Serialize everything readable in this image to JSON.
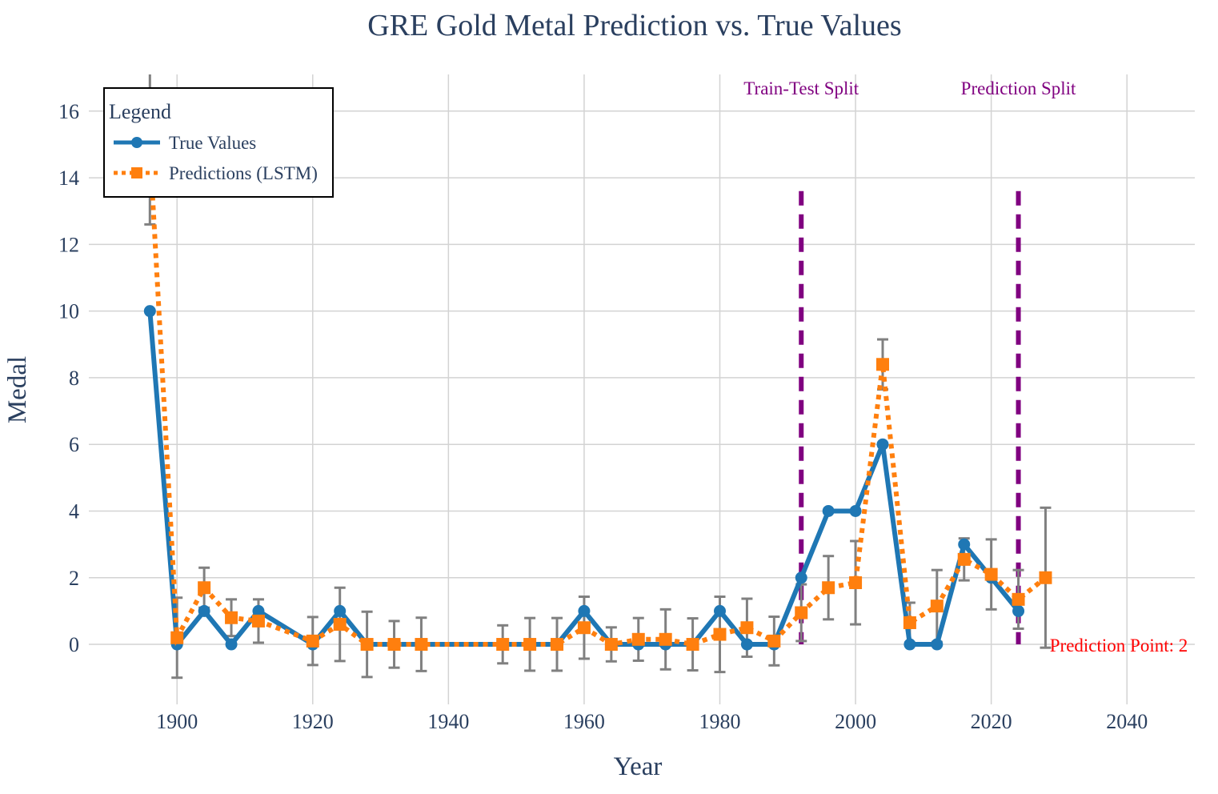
{
  "chart_data": {
    "type": "line",
    "title": "GRE Gold Metal Prediction vs. True Values",
    "xlabel": "Year",
    "ylabel": "Medal",
    "xlim": [
      1887,
      2050
    ],
    "ylim": [
      -1.8,
      17.1
    ],
    "x_ticks": [
      1900,
      1920,
      1940,
      1960,
      1980,
      2000,
      2020,
      2040
    ],
    "y_ticks": [
      0,
      2,
      4,
      6,
      8,
      10,
      12,
      14,
      16
    ],
    "grid": true,
    "legend": {
      "title": "Legend",
      "placement": "top-left",
      "entries": [
        "True Values",
        "Predictions (LSTM)"
      ]
    },
    "series": [
      {
        "name": "True Values",
        "color": "#1f77b4",
        "line": "solid",
        "marker": "circle",
        "x": [
          1896,
          1900,
          1904,
          1908,
          1912,
          1920,
          1924,
          1928,
          1932,
          1936,
          1948,
          1952,
          1956,
          1960,
          1964,
          1968,
          1972,
          1976,
          1980,
          1984,
          1988,
          1992,
          1996,
          2000,
          2004,
          2008,
          2012,
          2016,
          2020,
          2024
        ],
        "y": [
          10,
          0,
          1,
          0,
          1,
          0,
          1,
          0,
          0,
          0,
          0,
          0,
          0,
          1,
          0,
          0,
          0,
          0,
          1,
          0,
          0,
          2,
          4,
          4,
          6,
          0,
          0,
          3,
          2,
          1
        ]
      },
      {
        "name": "Predictions (LSTM)",
        "color": "#ff7f0e",
        "line": "dotted",
        "marker": "square",
        "x": [
          1896,
          1900,
          1904,
          1908,
          1912,
          1920,
          1924,
          1928,
          1932,
          1936,
          1948,
          1952,
          1956,
          1960,
          1964,
          1968,
          1972,
          1976,
          1980,
          1984,
          1988,
          1992,
          1996,
          2000,
          2004,
          2008,
          2012,
          2016,
          2020,
          2024,
          2028
        ],
        "y": [
          14.9,
          0.2,
          1.7,
          0.8,
          0.7,
          0.1,
          0.6,
          0.0,
          0.0,
          0.0,
          0.0,
          0.0,
          0.0,
          0.5,
          0.0,
          0.15,
          0.15,
          0.0,
          0.3,
          0.5,
          0.1,
          0.95,
          1.7,
          1.85,
          8.4,
          0.65,
          1.15,
          2.55,
          2.1,
          1.35,
          2.0
        ],
        "error": [
          2.3,
          1.2,
          0.6,
          0.55,
          0.65,
          0.72,
          1.1,
          0.98,
          0.7,
          0.8,
          0.57,
          0.79,
          0.79,
          0.93,
          0.51,
          0.64,
          0.9,
          0.78,
          1.13,
          0.87,
          0.73,
          0.85,
          0.95,
          1.25,
          0.75,
          0.6,
          1.08,
          0.63,
          1.05,
          0.88,
          2.1
        ],
        "error_color": "#808080"
      }
    ],
    "vlines": [
      {
        "x": 1992,
        "y_range": [
          0,
          13.6
        ],
        "color": "#800080",
        "label": "Train-Test Split"
      },
      {
        "x": 2024,
        "y_range": [
          0,
          13.6
        ],
        "color": "#800080",
        "label": "Prediction Split"
      }
    ],
    "annotations": [
      {
        "text": "Prediction Point: 2",
        "x": 2028,
        "y": 0,
        "color": "#ff0000"
      }
    ]
  }
}
